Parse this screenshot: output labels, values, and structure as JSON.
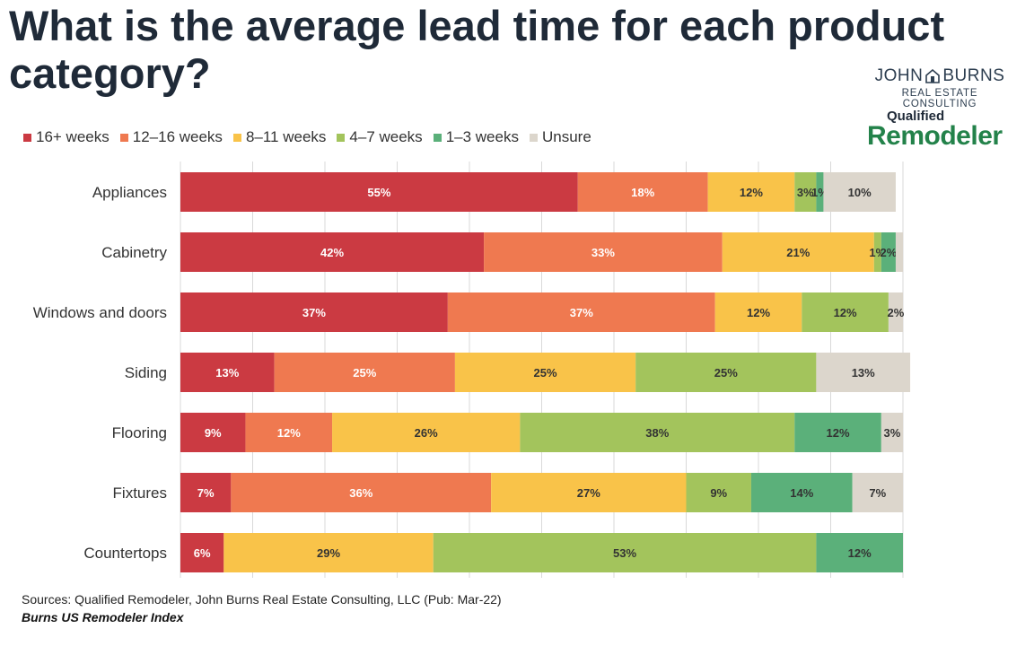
{
  "title": "What is the average lead time for each product category?",
  "logos": {
    "john_burns_line1_left": "JOHN",
    "john_burns_line1_right": "BURNS",
    "john_burns_line2": "REAL ESTATE CONSULTING",
    "qualified_remodeler_line1": "Qualified",
    "qualified_remodeler_line2": "Remodeler"
  },
  "colors": {
    "weeks_16_plus": "#cb3a42",
    "weeks_12_16": "#ef7950",
    "weeks_8_11": "#f9c349",
    "weeks_4_7": "#a3c45c",
    "weeks_1_3": "#5bb07a",
    "unsure": "#dcd6cc",
    "label_light": "#ffffff",
    "label_dark": "#333333",
    "grid": "#d9d9d9"
  },
  "chart_data": {
    "type": "bar",
    "orientation": "horizontal",
    "stacked": true,
    "categories": [
      "Appliances",
      "Cabinetry",
      "Windows and doors",
      "Siding",
      "Flooring",
      "Fixtures",
      "Countertops"
    ],
    "series": [
      {
        "name": "16+ weeks",
        "values": [
          55,
          42,
          37,
          13,
          9,
          7,
          6
        ]
      },
      {
        "name": "12–16 weeks",
        "values": [
          18,
          33,
          37,
          25,
          12,
          36,
          0
        ]
      },
      {
        "name": "8–11 weeks",
        "values": [
          12,
          21,
          12,
          25,
          26,
          27,
          29
        ]
      },
      {
        "name": "4–7 weeks",
        "values": [
          3,
          1,
          12,
          25,
          38,
          9,
          53
        ]
      },
      {
        "name": "1–3 weeks",
        "values": [
          1,
          2,
          0,
          0,
          12,
          14,
          12
        ]
      },
      {
        "name": "Unsure",
        "values": [
          10,
          1,
          2,
          13,
          3,
          7,
          0
        ]
      }
    ],
    "data_labels": [
      [
        "55%",
        "18%",
        "12%",
        "3%",
        "1%",
        "10%"
      ],
      [
        "42%",
        "33%",
        "21%",
        "1%",
        "2%",
        ""
      ],
      [
        "37%",
        "37%",
        "12%",
        "12%",
        "",
        "2%"
      ],
      [
        "13%",
        "25%",
        "25%",
        "25%",
        "",
        "13%"
      ],
      [
        "9%",
        "12%",
        "26%",
        "38%",
        "12%",
        "3%"
      ],
      [
        "7%",
        "36%",
        "27%",
        "9%",
        "14%",
        "7%"
      ],
      [
        "6%",
        "",
        "29%",
        "53%",
        "12%",
        ""
      ]
    ],
    "legend_position": "top-left",
    "grid": true,
    "xlim": [
      0,
      100
    ]
  },
  "footer": {
    "source": "Sources: Qualified Remodeler, John Burns Real Estate Consulting, LLC (Pub: Mar-22)",
    "index_name": "Burns US Remodeler Index"
  }
}
